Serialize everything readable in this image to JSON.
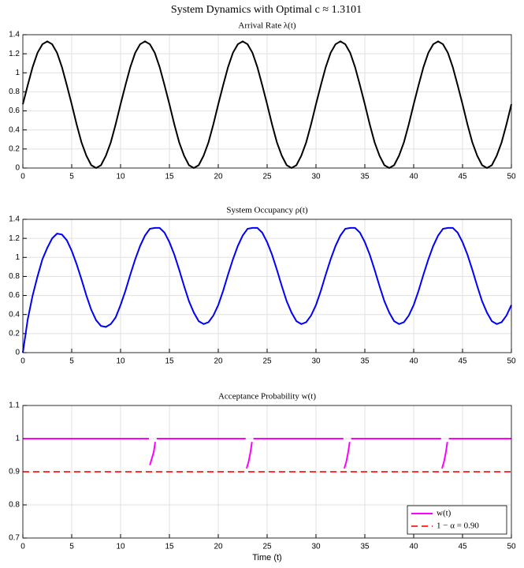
{
  "title": "System Dynamics with Optimal c ≈ 1.3101",
  "chart_data": [
    {
      "type": "line",
      "title": "Arrival Rate λ(t)",
      "x": [
        0,
        0.5,
        1,
        1.5,
        2,
        2.5,
        3,
        3.5,
        4,
        4.5,
        5,
        5.5,
        6,
        6.5,
        7,
        7.5,
        8,
        8.5,
        9,
        9.5,
        10,
        10.5,
        11,
        11.5,
        12,
        12.5,
        13,
        13.5,
        14,
        14.5,
        15,
        15.5,
        16,
        16.5,
        17,
        17.5,
        18,
        18.5,
        19,
        19.5,
        20,
        20.5,
        21,
        21.5,
        22,
        22.5,
        23,
        23.5,
        24,
        24.5,
        25,
        25.5,
        26,
        26.5,
        27,
        27.5,
        28,
        28.5,
        29,
        29.5,
        30,
        30.5,
        31,
        31.5,
        32,
        32.5,
        33,
        33.5,
        34,
        34.5,
        35,
        35.5,
        36,
        36.5,
        37,
        37.5,
        38,
        38.5,
        39,
        39.5,
        40,
        40.5,
        41,
        41.5,
        42,
        42.5,
        43,
        43.5,
        44,
        44.5,
        45,
        45.5,
        46,
        46.5,
        47,
        47.5,
        48,
        48.5,
        49,
        49.5,
        50
      ],
      "series": [
        {
          "color": "#000000",
          "linestyle": "solid",
          "values": [
            0.67,
            0.87,
            1.06,
            1.21,
            1.3,
            1.33,
            1.3,
            1.21,
            1.06,
            0.87,
            0.67,
            0.46,
            0.27,
            0.13,
            0.03,
            0,
            0.03,
            0.13,
            0.27,
            0.46,
            0.67,
            0.87,
            1.06,
            1.21,
            1.3,
            1.33,
            1.3,
            1.21,
            1.06,
            0.87,
            0.67,
            0.46,
            0.27,
            0.13,
            0.03,
            0,
            0.03,
            0.13,
            0.27,
            0.46,
            0.67,
            0.87,
            1.06,
            1.21,
            1.3,
            1.33,
            1.3,
            1.21,
            1.06,
            0.87,
            0.67,
            0.46,
            0.27,
            0.13,
            0.03,
            0,
            0.03,
            0.13,
            0.27,
            0.46,
            0.67,
            0.87,
            1.06,
            1.21,
            1.3,
            1.33,
            1.3,
            1.21,
            1.06,
            0.87,
            0.67,
            0.46,
            0.27,
            0.13,
            0.03,
            0,
            0.03,
            0.13,
            0.27,
            0.46,
            0.67,
            0.87,
            1.06,
            1.21,
            1.3,
            1.33,
            1.3,
            1.21,
            1.06,
            0.87,
            0.67,
            0.46,
            0.27,
            0.13,
            0.03,
            0,
            0.03,
            0.13,
            0.27,
            0.46,
            0.67
          ]
        }
      ],
      "xlim": [
        0,
        50
      ],
      "xticks": [
        0,
        5,
        10,
        15,
        20,
        25,
        30,
        35,
        40,
        45,
        50
      ],
      "ylim": [
        0,
        1.4
      ],
      "yticks": [
        0,
        0.2,
        0.4,
        0.6,
        0.8,
        1,
        1.2,
        1.4
      ],
      "grid": true
    },
    {
      "type": "line",
      "title": "System Occupancy ρ(t)",
      "x": [
        0,
        0.5,
        1,
        1.5,
        2,
        2.5,
        3,
        3.5,
        4,
        4.5,
        5,
        5.5,
        6,
        6.5,
        7,
        7.5,
        8,
        8.5,
        9,
        9.5,
        10,
        10.5,
        11,
        11.5,
        12,
        12.5,
        13,
        13.5,
        14,
        14.5,
        15,
        15.5,
        16,
        16.5,
        17,
        17.5,
        18,
        18.5,
        19,
        19.5,
        20,
        20.5,
        21,
        21.5,
        22,
        22.5,
        23,
        23.5,
        24,
        24.5,
        25,
        25.5,
        26,
        26.5,
        27,
        27.5,
        28,
        28.5,
        29,
        29.5,
        30,
        30.5,
        31,
        31.5,
        32,
        32.5,
        33,
        33.5,
        34,
        34.5,
        35,
        35.5,
        36,
        36.5,
        37,
        37.5,
        38,
        38.5,
        39,
        39.5,
        40,
        40.5,
        41,
        41.5,
        42,
        42.5,
        43,
        43.5,
        44,
        44.5,
        45,
        45.5,
        46,
        46.5,
        47,
        47.5,
        48,
        48.5,
        49,
        49.5,
        50
      ],
      "series": [
        {
          "color": "#0000ff",
          "linestyle": "solid",
          "values": [
            0,
            0.35,
            0.6,
            0.8,
            0.98,
            1.1,
            1.2,
            1.25,
            1.24,
            1.18,
            1.07,
            0.93,
            0.77,
            0.6,
            0.45,
            0.34,
            0.28,
            0.27,
            0.3,
            0.37,
            0.5,
            0.65,
            0.82,
            0.98,
            1.12,
            1.23,
            1.3,
            1.31,
            1.31,
            1.26,
            1.16,
            1.03,
            0.87,
            0.7,
            0.54,
            0.42,
            0.33,
            0.3,
            0.32,
            0.39,
            0.5,
            0.65,
            0.82,
            0.98,
            1.12,
            1.23,
            1.3,
            1.31,
            1.31,
            1.26,
            1.16,
            1.03,
            0.87,
            0.7,
            0.54,
            0.42,
            0.33,
            0.3,
            0.32,
            0.39,
            0.5,
            0.65,
            0.82,
            0.98,
            1.12,
            1.23,
            1.3,
            1.31,
            1.31,
            1.26,
            1.16,
            1.03,
            0.87,
            0.7,
            0.54,
            0.42,
            0.33,
            0.3,
            0.32,
            0.39,
            0.5,
            0.65,
            0.82,
            0.98,
            1.12,
            1.23,
            1.3,
            1.31,
            1.31,
            1.26,
            1.16,
            1.03,
            0.87,
            0.7,
            0.54,
            0.42,
            0.33,
            0.3,
            0.32,
            0.39,
            0.5
          ]
        }
      ],
      "xlim": [
        0,
        50
      ],
      "xticks": [
        0,
        5,
        10,
        15,
        20,
        25,
        30,
        35,
        40,
        45,
        50
      ],
      "ylim": [
        0,
        1.4
      ],
      "yticks": [
        0,
        0.2,
        0.4,
        0.6,
        0.8,
        1,
        1.2,
        1.4
      ],
      "grid": true
    },
    {
      "type": "line",
      "title": "Acceptance Probability w(t)",
      "xlabel": "Time (t)",
      "series": [
        {
          "name": "w(t)",
          "color": "#ff00ff",
          "linestyle": "solid",
          "x": [
            0,
            12.9,
            12.95,
            13,
            13.2,
            13.4,
            13.55,
            13.6,
            13.7,
            22.8,
            22.85,
            22.9,
            23.1,
            23.3,
            23.45,
            23.5,
            23.6,
            32.8,
            32.85,
            32.9,
            33.1,
            33.3,
            33.45,
            33.5,
            33.6,
            42.8,
            42.85,
            42.9,
            43.1,
            43.3,
            43.45,
            43.5,
            43.6,
            50
          ],
          "values": [
            1,
            1,
            null,
            0.92,
            0.94,
            0.96,
            0.99,
            null,
            1,
            1,
            null,
            0.91,
            0.93,
            0.96,
            0.99,
            null,
            1,
            1,
            null,
            0.91,
            0.93,
            0.96,
            0.99,
            null,
            1,
            1,
            null,
            0.91,
            0.93,
            0.96,
            0.99,
            null,
            1,
            1
          ]
        },
        {
          "name": "1 − α = 0.90",
          "color": "#ff3333",
          "linestyle": "dashed",
          "x": [
            0,
            50
          ],
          "values": [
            0.9,
            0.9
          ]
        }
      ],
      "xlim": [
        0,
        50
      ],
      "xticks": [
        0,
        5,
        10,
        15,
        20,
        25,
        30,
        35,
        40,
        45,
        50
      ],
      "ylim": [
        0.7,
        1.1
      ],
      "yticks": [
        0.7,
        0.8,
        0.9,
        1,
        1.1
      ],
      "grid": true,
      "legend": "lower right"
    }
  ]
}
